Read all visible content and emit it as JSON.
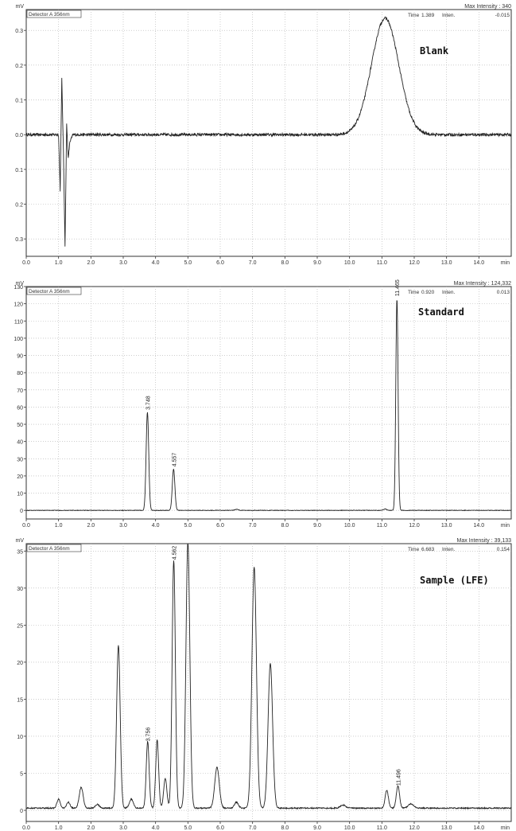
{
  "figure": {
    "x_unit": "min",
    "y_unit": "mV"
  },
  "chart_data": [
    {
      "type": "line",
      "panel_label": "Blank",
      "detector": "Detector A 356nm",
      "max_intensity_label": "Max Intensity :",
      "max_intensity": "340",
      "cursor": {
        "time_label": "Time",
        "time": "1.389",
        "inten_label": "Inten.",
        "inten": "-0.015"
      },
      "ylabel": "mV",
      "xlabel": "min",
      "xlim": [
        0,
        15
      ],
      "ylim": [
        -0.35,
        0.36
      ],
      "xticks": [
        "0.0",
        "1.0",
        "2.0",
        "3.0",
        "4.0",
        "5.0",
        "6.0",
        "7.0",
        "8.0",
        "9.0",
        "10.0",
        "11.0",
        "12.0",
        "13.0",
        "14.0"
      ],
      "yticks": [
        {
          "v": 0.3,
          "label": "0.3"
        },
        {
          "v": 0.2,
          "label": "0.2"
        },
        {
          "v": 0.1,
          "label": "0.1"
        },
        {
          "v": 0.0,
          "label": "0.0"
        },
        {
          "v": -0.1,
          "label": "0.1"
        },
        {
          "v": -0.2,
          "label": "0.2"
        },
        {
          "v": -0.3,
          "label": "0.3"
        }
      ],
      "grid": true,
      "baseline": 0,
      "noise": 0.004,
      "artifacts": [
        [
          1.0,
          0.0
        ],
        [
          1.05,
          -0.16
        ],
        [
          1.1,
          0.16
        ],
        [
          1.15,
          -0.05
        ],
        [
          1.2,
          -0.32
        ],
        [
          1.25,
          0.03
        ],
        [
          1.3,
          -0.07
        ],
        [
          1.35,
          -0.02
        ],
        [
          1.45,
          0.0
        ]
      ],
      "peaks": [
        {
          "rt": 11.1,
          "height": 0.335,
          "width": 0.42
        }
      ],
      "peak_labels": []
    },
    {
      "type": "line",
      "panel_label": "Standard",
      "detector": "Detector A 356nm",
      "max_intensity_label": "Max Intensity :",
      "max_intensity": "124,332",
      "cursor": {
        "time_label": "Time",
        "time": "0.920",
        "inten_label": "Inten.",
        "inten": "0.013"
      },
      "ylabel": "mV",
      "xlabel": "min",
      "xlim": [
        0,
        15
      ],
      "ylim": [
        -5,
        130
      ],
      "xticks": [
        "0.0",
        "1.0",
        "2.0",
        "3.0",
        "4.0",
        "5.0",
        "6.0",
        "7.0",
        "8.0",
        "9.0",
        "10.0",
        "11.0",
        "12.0",
        "13.0",
        "14.0"
      ],
      "yticks": [
        {
          "v": 130,
          "label": "130"
        },
        {
          "v": 120,
          "label": "120"
        },
        {
          "v": 110,
          "label": "110"
        },
        {
          "v": 100,
          "label": "100"
        },
        {
          "v": 90,
          "label": "90"
        },
        {
          "v": 80,
          "label": "80"
        },
        {
          "v": 70,
          "label": "70"
        },
        {
          "v": 60,
          "label": "60"
        },
        {
          "v": 50,
          "label": "50"
        },
        {
          "v": 40,
          "label": "40"
        },
        {
          "v": 30,
          "label": "30"
        },
        {
          "v": 20,
          "label": "20"
        },
        {
          "v": 10,
          "label": "10"
        },
        {
          "v": 0,
          "label": "0"
        }
      ],
      "grid": true,
      "baseline": 0,
      "noise": 0.15,
      "artifacts": [],
      "peaks": [
        {
          "rt": 3.748,
          "height": 57,
          "width": 0.04
        },
        {
          "rt": 4.557,
          "height": 24,
          "width": 0.04
        },
        {
          "rt": 6.5,
          "height": 0.6,
          "width": 0.05
        },
        {
          "rt": 11.1,
          "height": 0.8,
          "width": 0.05
        },
        {
          "rt": 11.465,
          "height": 123,
          "width": 0.035
        }
      ],
      "peak_labels": [
        {
          "rt": 3.748,
          "y": 57,
          "text": "3.748"
        },
        {
          "rt": 4.557,
          "y": 24,
          "text": "4.557"
        },
        {
          "rt": 11.465,
          "y": 123,
          "text": "11.465"
        }
      ]
    },
    {
      "type": "line",
      "panel_label": "Sample (LFE)",
      "detector": "Detector A 356nm",
      "max_intensity_label": "Max Intensity :",
      "max_intensity": "39,133",
      "cursor": {
        "time_label": "Time",
        "time": "6.683",
        "inten_label": "Inten.",
        "inten": "0.154"
      },
      "ylabel": "mV",
      "xlabel": "min",
      "xlim": [
        0,
        15
      ],
      "ylim": [
        -1.5,
        36
      ],
      "xticks": [
        "0.0",
        "1.0",
        "2.0",
        "3.0",
        "4.0",
        "5.0",
        "6.0",
        "7.0",
        "8.0",
        "9.0",
        "10.0",
        "11.0",
        "12.0",
        "13.0",
        "14.0"
      ],
      "yticks": [
        {
          "v": 35,
          "label": "35"
        },
        {
          "v": 30,
          "label": "30"
        },
        {
          "v": 25,
          "label": "25"
        },
        {
          "v": 20,
          "label": "20"
        },
        {
          "v": 15,
          "label": "15"
        },
        {
          "v": 10,
          "label": "10"
        },
        {
          "v": 5,
          "label": "5"
        },
        {
          "v": 0,
          "label": "0"
        }
      ],
      "grid": true,
      "baseline": 0.3,
      "noise": 0.08,
      "artifacts": [],
      "peaks": [
        {
          "rt": 1.0,
          "height": 1.2,
          "width": 0.05
        },
        {
          "rt": 1.3,
          "height": 0.8,
          "width": 0.05
        },
        {
          "rt": 1.7,
          "height": 2.8,
          "width": 0.06
        },
        {
          "rt": 2.2,
          "height": 0.5,
          "width": 0.06
        },
        {
          "rt": 2.85,
          "height": 22,
          "width": 0.055
        },
        {
          "rt": 3.25,
          "height": 1.2,
          "width": 0.06
        },
        {
          "rt": 3.756,
          "height": 9.0,
          "width": 0.045
        },
        {
          "rt": 4.05,
          "height": 9.2,
          "width": 0.045
        },
        {
          "rt": 4.3,
          "height": 4.0,
          "width": 0.05
        },
        {
          "rt": 4.562,
          "height": 33.5,
          "width": 0.05
        },
        {
          "rt": 5.0,
          "height": 36,
          "width": 0.06
        },
        {
          "rt": 5.9,
          "height": 5.5,
          "width": 0.07
        },
        {
          "rt": 6.5,
          "height": 0.8,
          "width": 0.06
        },
        {
          "rt": 7.05,
          "height": 32.5,
          "width": 0.07
        },
        {
          "rt": 7.55,
          "height": 19.5,
          "width": 0.07
        },
        {
          "rt": 9.8,
          "height": 0.4,
          "width": 0.08
        },
        {
          "rt": 11.15,
          "height": 2.4,
          "width": 0.05
        },
        {
          "rt": 11.496,
          "height": 3.0,
          "width": 0.05
        },
        {
          "rt": 11.9,
          "height": 0.6,
          "width": 0.08
        }
      ],
      "peak_labels": [
        {
          "rt": 3.756,
          "y": 9.0,
          "text": "3.756"
        },
        {
          "rt": 4.562,
          "y": 33.5,
          "text": "4.562"
        },
        {
          "rt": 11.496,
          "y": 3.0,
          "text": "11.496"
        }
      ]
    }
  ]
}
